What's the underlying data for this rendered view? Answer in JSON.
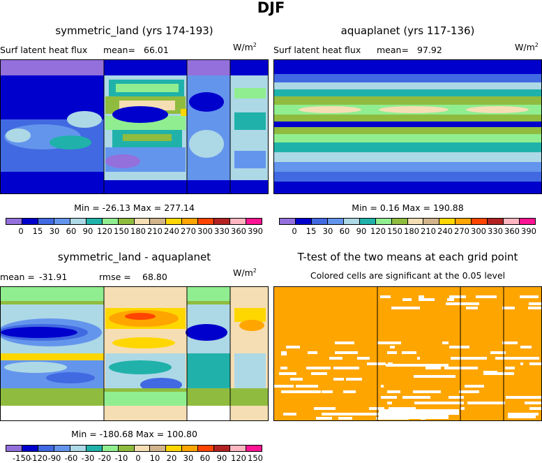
{
  "title": "DJF",
  "colors": {
    "lavender": "#9370db",
    "navy": "#0000cd",
    "blue": "#4169e1",
    "cornflower": "#6495ed",
    "lightblue": "#add8e6",
    "teal": "#20b2aa",
    "lightgreen": "#90ee90",
    "olive": "#8fbc3f",
    "wheat": "#f5deb3",
    "tan": "#d2b48c",
    "gold": "#ffd700",
    "orange": "#ffa500",
    "red": "#ff4500",
    "darkred": "#b22222",
    "pink": "#ffb6c1",
    "magenta": "#ff1493",
    "white": "#ffffff"
  },
  "chart_data": [
    {
      "type": "heatmap",
      "title": "symmetric_land (yrs 174-193)",
      "subtitle": "Surf latent heat flux",
      "mean_label": "mean=",
      "mean": "66.01",
      "units": "W/m",
      "units_sup": "2",
      "stats": "Min = -26.13 Max = 277.14",
      "colorbar_labels": [
        "0",
        "15",
        "30",
        "60",
        "90",
        "120",
        "150",
        "180",
        "210",
        "240",
        "270",
        "300",
        "330",
        "360",
        "390"
      ]
    },
    {
      "type": "heatmap",
      "title": "aquaplanet (yrs 117-136)",
      "subtitle": "Surf latent heat flux",
      "mean_label": "mean=",
      "mean": "97.92",
      "units": "W/m",
      "units_sup": "2",
      "stats": "Min = 0.16 Max = 190.88",
      "colorbar_labels": [
        "0",
        "15",
        "30",
        "60",
        "90",
        "120",
        "150",
        "180",
        "210",
        "240",
        "270",
        "300",
        "330",
        "360",
        "390"
      ]
    },
    {
      "type": "heatmap",
      "title": "symmetric_land - aquaplanet",
      "mean_label": "mean =",
      "mean": "-31.91",
      "rmse_label": "rmse =",
      "rmse": "68.80",
      "units": "W/m",
      "units_sup": "2",
      "stats": "Min = -180.68 Max = 100.80",
      "colorbar_labels": [
        "-150",
        "-120",
        "-90",
        "-60",
        "-30",
        "-20",
        "-10",
        "0",
        "10",
        "20",
        "30",
        "60",
        "90",
        "120",
        "150"
      ]
    },
    {
      "type": "heatmap",
      "title": "T-test of the two means at each grid point",
      "subtitle": "Colored cells are significant at the 0.05 level"
    }
  ]
}
